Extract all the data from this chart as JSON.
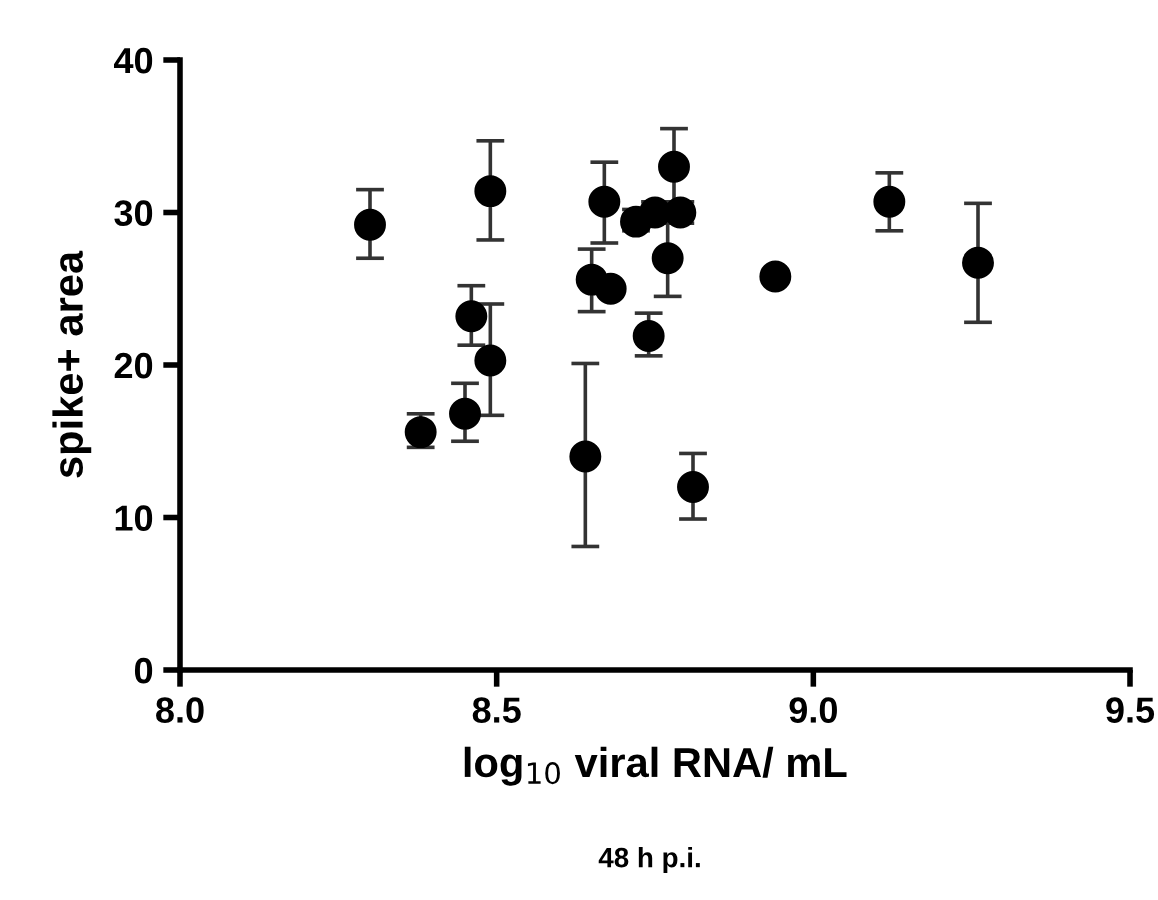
{
  "chart_data": {
    "type": "scatter",
    "xlabel": "log$_{10}$ viral RNA/ mL",
    "ylabel": "spike+ area",
    "annotations": [
      "48 h p.i."
    ],
    "x": [
      8.3,
      8.38,
      8.45,
      8.46,
      8.49,
      8.49,
      8.64,
      8.65,
      8.67,
      8.68,
      8.72,
      8.74,
      8.75,
      8.77,
      8.78,
      8.79,
      8.81,
      8.94,
      9.12,
      9.26
    ],
    "values": [
      29.2,
      15.6,
      16.8,
      23.2,
      31.4,
      20.3,
      14.0,
      25.6,
      30.7,
      25.0,
      29.4,
      21.9,
      30.0,
      27.0,
      33.0,
      30.0,
      12.0,
      25.8,
      30.7,
      26.7
    ],
    "errors": [
      [
        27.0,
        31.5
      ],
      [
        14.6,
        16.8
      ],
      [
        15.0,
        18.8
      ],
      [
        21.3,
        25.2
      ],
      [
        28.2,
        34.7
      ],
      [
        16.7,
        24.0
      ],
      [
        8.1,
        20.1
      ],
      [
        23.5,
        27.6
      ],
      [
        28.0,
        33.3
      ],
      null,
      [
        28.8,
        30.2
      ],
      [
        20.6,
        23.4
      ],
      [
        29.3,
        30.7
      ],
      [
        24.5,
        30.3
      ],
      [
        30.4,
        35.5
      ],
      [
        29.3,
        30.7
      ],
      [
        9.9,
        14.2
      ],
      null,
      [
        28.8,
        32.6
      ],
      [
        22.8,
        30.6
      ]
    ],
    "color": "#000000",
    "marker": "circle",
    "xlim": [
      8.0,
      9.5
    ],
    "ylim": [
      0,
      40
    ],
    "xticks": [
      {
        "value": 8,
        "label": "8.0"
      },
      8.5,
      {
        "value": 9,
        "label": "9.0"
      },
      9.5
    ],
    "yticks": [
      0,
      10,
      20,
      30,
      40
    ],
    "grid": false,
    "legend": false
  }
}
